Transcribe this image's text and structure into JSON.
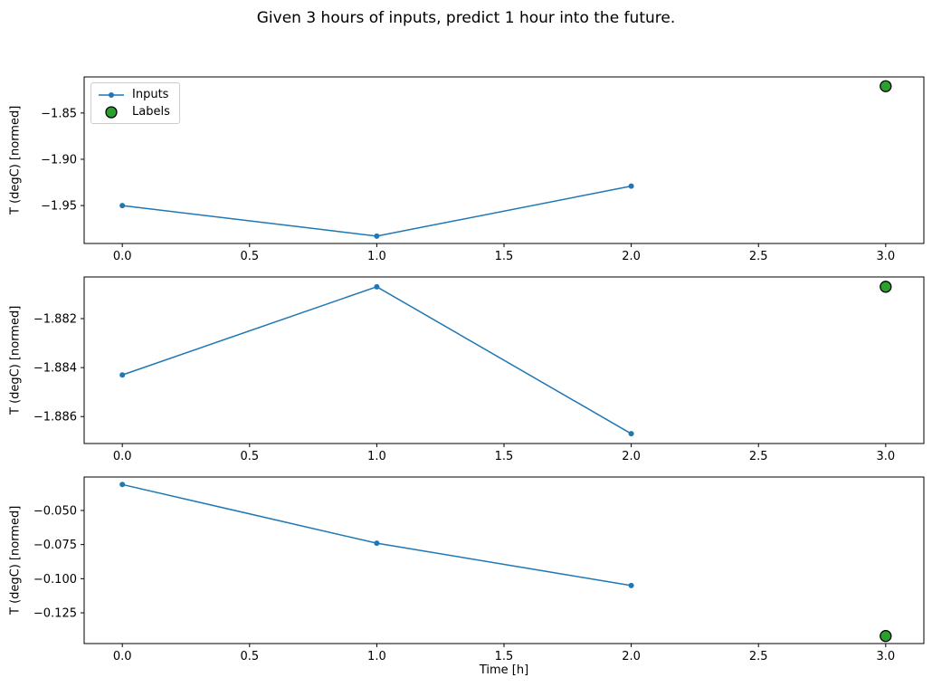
{
  "figure": {
    "title": "Given 3 hours of inputs, predict 1 hour into the future.",
    "xlabel": "Time [h]",
    "background": "#ffffff",
    "colors": {
      "inputs": "#1f77b4",
      "labels": "#2ca02c",
      "marker_edge": "#000000",
      "spine": "#000000",
      "legend_border": "#cccccc",
      "text": "#000000"
    },
    "legend": {
      "position": "upper left",
      "items": [
        {
          "label": "Inputs"
        },
        {
          "label": "Labels"
        }
      ]
    }
  },
  "chart_data": [
    {
      "type": "line",
      "ylabel": "T (degC) [normed]",
      "xlim": [
        -0.15,
        3.15
      ],
      "ylim": [
        -1.991,
        -1.811
      ],
      "x_ticks": [
        0.0,
        0.5,
        1.0,
        1.5,
        2.0,
        2.5,
        3.0
      ],
      "x_tick_labels": [
        "0.0",
        "0.5",
        "1.0",
        "1.5",
        "2.0",
        "2.5",
        "3.0"
      ],
      "y_ticks": [
        -1.85,
        -1.9,
        -1.95
      ],
      "y_tick_labels": [
        "−1.85",
        "−1.90",
        "−1.95"
      ],
      "grid": false,
      "legend_visible": true,
      "series": [
        {
          "name": "Inputs",
          "style": "line+marker",
          "x": [
            0,
            1,
            2
          ],
          "y": [
            -1.95,
            -1.983,
            -1.929
          ]
        },
        {
          "name": "Labels",
          "style": "scatter",
          "x": [
            3
          ],
          "y": [
            -1.821
          ]
        }
      ]
    },
    {
      "type": "line",
      "ylabel": "T (degC) [normed]",
      "xlim": [
        -0.15,
        3.15
      ],
      "ylim": [
        -1.8871,
        -1.8803
      ],
      "x_ticks": [
        0.0,
        0.5,
        1.0,
        1.5,
        2.0,
        2.5,
        3.0
      ],
      "x_tick_labels": [
        "0.0",
        "0.5",
        "1.0",
        "1.5",
        "2.0",
        "2.5",
        "3.0"
      ],
      "y_ticks": [
        -1.882,
        -1.884,
        -1.886
      ],
      "y_tick_labels": [
        "−1.882",
        "−1.884",
        "−1.886"
      ],
      "grid": false,
      "legend_visible": false,
      "series": [
        {
          "name": "Inputs",
          "style": "line+marker",
          "x": [
            0,
            1,
            2
          ],
          "y": [
            -1.8843,
            -1.8807,
            -1.8867
          ]
        },
        {
          "name": "Labels",
          "style": "scatter",
          "x": [
            3
          ],
          "y": [
            -1.8807
          ]
        }
      ]
    },
    {
      "type": "line",
      "ylabel": "T (degC) [normed]",
      "xlabel": "Time [h]",
      "xlim": [
        -0.15,
        3.15
      ],
      "ylim": [
        -0.1475,
        -0.0255
      ],
      "x_ticks": [
        0.0,
        0.5,
        1.0,
        1.5,
        2.0,
        2.5,
        3.0
      ],
      "x_tick_labels": [
        "0.0",
        "0.5",
        "1.0",
        "1.5",
        "2.0",
        "2.5",
        "3.0"
      ],
      "y_ticks": [
        -0.05,
        -0.075,
        -0.1,
        -0.125
      ],
      "y_tick_labels": [
        "−0.050",
        "−0.075",
        "−0.100",
        "−0.125"
      ],
      "grid": false,
      "legend_visible": false,
      "series": [
        {
          "name": "Inputs",
          "style": "line+marker",
          "x": [
            0,
            1,
            2
          ],
          "y": [
            -0.031,
            -0.074,
            -0.105
          ]
        },
        {
          "name": "Labels",
          "style": "scatter",
          "x": [
            3
          ],
          "y": [
            -0.142
          ]
        }
      ]
    }
  ]
}
